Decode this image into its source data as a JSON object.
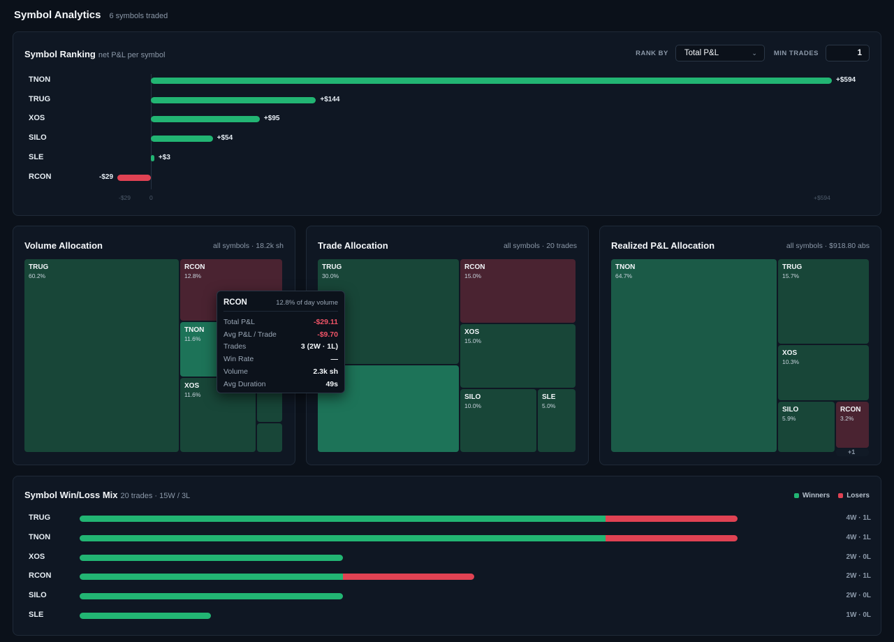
{
  "header": {
    "title": "Symbol Analytics",
    "subtitle": "6 symbols traded"
  },
  "ranking": {
    "title": "Symbol Ranking",
    "subtitle": "net P&L per symbol",
    "rank_by_label": "RANK BY",
    "rank_by_value": "Total P&L",
    "min_trades_label": "MIN TRADES",
    "min_trades_value": "1",
    "axis_min_label": "-$29",
    "axis_zero_label": "0",
    "axis_max_label": "+$594",
    "rows": [
      {
        "symbol": "TNON",
        "value": 594,
        "label": "+$594"
      },
      {
        "symbol": "TRUG",
        "value": 144,
        "label": "+$144"
      },
      {
        "symbol": "XOS",
        "value": 95,
        "label": "+$95"
      },
      {
        "symbol": "SILO",
        "value": 54,
        "label": "+$54"
      },
      {
        "symbol": "SLE",
        "value": 3,
        "label": "+$3"
      },
      {
        "symbol": "RCON",
        "value": -29,
        "label": "-$29"
      }
    ],
    "colors": {
      "positive": "#22b573",
      "negative": "#e04253"
    }
  },
  "volume": {
    "title": "Volume Allocation",
    "meta": "all symbols · 18.2k sh",
    "tiles": [
      {
        "symbol": "TRUG",
        "pct": "60.2%"
      },
      {
        "symbol": "RCON",
        "pct": "12.8%"
      },
      {
        "symbol": "TNON",
        "pct": "11.6%"
      },
      {
        "symbol": "XOS",
        "pct": "11.6%"
      }
    ]
  },
  "trades": {
    "title": "Trade Allocation",
    "meta": "all symbols · 20 trades",
    "tiles": [
      {
        "symbol": "TRUG",
        "pct": "30.0%"
      },
      {
        "symbol": "RCON",
        "pct": "15.0%"
      },
      {
        "symbol": "XOS",
        "pct": "15.0%"
      },
      {
        "symbol": "SILO",
        "pct": "10.0%"
      },
      {
        "symbol": "SLE",
        "pct": "5.0%"
      }
    ]
  },
  "realized": {
    "title": "Realized P&L Allocation",
    "meta": "all symbols · $918.80 abs",
    "tiles": [
      {
        "symbol": "TNON",
        "pct": "64.7%"
      },
      {
        "symbol": "TRUG",
        "pct": "15.7%"
      },
      {
        "symbol": "XOS",
        "pct": "10.3%"
      },
      {
        "symbol": "SILO",
        "pct": "5.9%"
      },
      {
        "symbol": "RCON",
        "pct": "3.2%"
      }
    ],
    "more_label": "+1"
  },
  "tooltip": {
    "symbol": "RCON",
    "subtitle": "12.8% of day volume",
    "rows": [
      {
        "key": "Total P&L",
        "value": "-$29.11",
        "negative": true
      },
      {
        "key": "Avg P&L / Trade",
        "value": "-$9.70",
        "negative": true
      },
      {
        "key": "Trades",
        "value": "3 (2W · 1L)",
        "negative": false
      },
      {
        "key": "Win Rate",
        "value": "—",
        "negative": false
      },
      {
        "key": "Volume",
        "value": "2.3k sh",
        "negative": false
      },
      {
        "key": "Avg Duration",
        "value": "49s",
        "negative": false
      }
    ]
  },
  "winloss": {
    "title": "Symbol Win/Loss Mix",
    "subtitle": "20 trades · 15W / 3L",
    "legend_winners": "Winners",
    "legend_losers": "Losers",
    "max_trades": 6,
    "rows": [
      {
        "symbol": "TRUG",
        "wins": 4,
        "losses": 1,
        "label": "4W · 1L"
      },
      {
        "symbol": "TNON",
        "wins": 4,
        "losses": 1,
        "label": "4W · 1L"
      },
      {
        "symbol": "XOS",
        "wins": 2,
        "losses": 0,
        "label": "2W · 0L"
      },
      {
        "symbol": "RCON",
        "wins": 2,
        "losses": 1,
        "label": "2W · 1L"
      },
      {
        "symbol": "SILO",
        "wins": 2,
        "losses": 0,
        "label": "2W · 0L"
      },
      {
        "symbol": "SLE",
        "wins": 1,
        "losses": 0,
        "label": "1W · 0L"
      }
    ]
  }
}
